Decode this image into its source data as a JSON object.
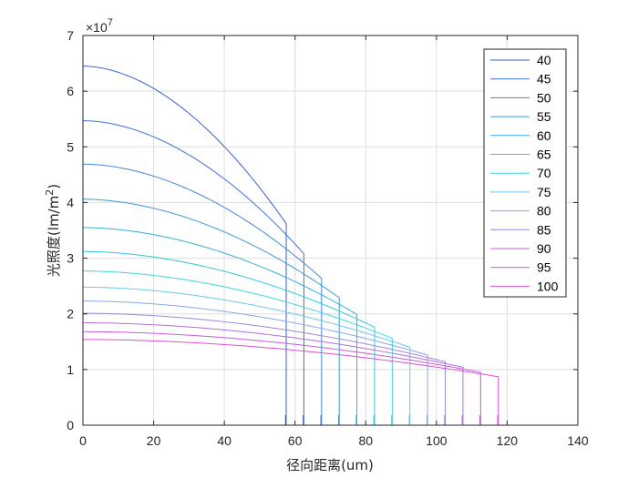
{
  "chart_data": {
    "type": "line",
    "title": "",
    "xlabel": "径向距离(um)",
    "ylabel_main": "光照度(lm/m",
    "ylabel_sup": "2",
    "ylabel_close": ")",
    "exponent_base": "×10",
    "exponent_power": "7",
    "xlim": [
      0,
      140
    ],
    "ylim": [
      0,
      7
    ],
    "xticks": [
      0,
      20,
      40,
      60,
      80,
      100,
      120,
      140
    ],
    "xtick_labels": [
      "0",
      "20",
      "40",
      "60",
      "80",
      "100",
      "120",
      "140"
    ],
    "yticks": [
      0,
      1,
      2,
      3,
      4,
      5,
      6,
      7
    ],
    "ytick_labels": [
      "0",
      "1",
      "2",
      "3",
      "4",
      "5",
      "6",
      "7"
    ],
    "y_units_scale": 10000000,
    "grid": true,
    "legend_position": "top-right",
    "series": [
      {
        "name": "40",
        "color": "#3a5fcd",
        "peak": 6.45,
        "edge_value": 3.62,
        "cutoff": 57.5
      },
      {
        "name": "45",
        "color": "#3f72d4",
        "peak": 5.47,
        "edge_value": 3.08,
        "cutoff": 62.5
      },
      {
        "name": "50",
        "color": "#4186d8",
        "peak": 4.69,
        "edge_value": 2.64,
        "cutoff": 67.5
      },
      {
        "name": "55",
        "color": "#3d9ad6",
        "peak": 4.06,
        "edge_value": 2.29,
        "cutoff": 72.5
      },
      {
        "name": "60",
        "color": "#35b0d8",
        "peak": 3.55,
        "edge_value": 1.99,
        "cutoff": 77.5
      },
      {
        "name": "65",
        "color": "#33c6dc",
        "peak": 3.12,
        "edge_value": 1.76,
        "cutoff": 82.5
      },
      {
        "name": "70",
        "color": "#3dd8dc",
        "peak": 2.77,
        "edge_value": 1.56,
        "cutoff": 87.5
      },
      {
        "name": "75",
        "color": "#6cc8e8",
        "peak": 2.48,
        "edge_value": 1.4,
        "cutoff": 92.5
      },
      {
        "name": "80",
        "color": "#8aa8e6",
        "peak": 2.23,
        "edge_value": 1.26,
        "cutoff": 97.5
      },
      {
        "name": "85",
        "color": "#9a8ad8",
        "peak": 2.01,
        "edge_value": 1.14,
        "cutoff": 102.5
      },
      {
        "name": "90",
        "color": "#b46ed8",
        "peak": 1.84,
        "edge_value": 1.04,
        "cutoff": 107.5
      },
      {
        "name": "95",
        "color": "#c85ad8",
        "peak": 1.68,
        "edge_value": 0.95,
        "cutoff": 112.5
      },
      {
        "name": "100",
        "color": "#d94fd4",
        "peak": 1.54,
        "edge_value": 0.87,
        "cutoff": 117.5
      }
    ]
  }
}
